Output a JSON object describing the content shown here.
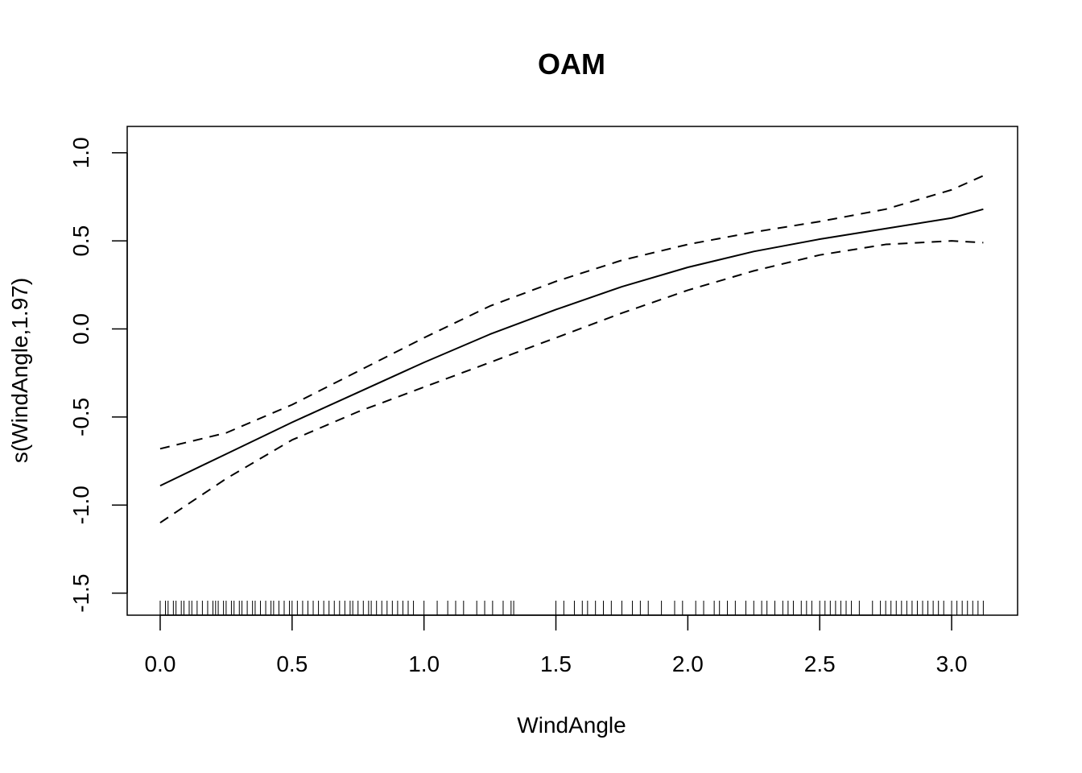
{
  "chart_data": {
    "type": "line",
    "title": "OAM",
    "xlabel": "WindAngle",
    "ylabel": "s(WindAngle,1.97)",
    "xlim": [
      -0.125,
      3.25
    ],
    "ylim": [
      -1.625,
      1.15
    ],
    "xticks": [
      0.0,
      0.5,
      1.0,
      1.5,
      2.0,
      2.5,
      3.0
    ],
    "xtick_labels": [
      "0.0",
      "0.5",
      "1.0",
      "1.5",
      "2.0",
      "2.5",
      "3.0"
    ],
    "yticks": [
      -1.5,
      -1.0,
      -0.5,
      0.0,
      0.5,
      1.0
    ],
    "ytick_labels": [
      "-1.5",
      "-1.0",
      "-0.5",
      "0.0",
      "0.5",
      "1.0"
    ],
    "grid": false,
    "series": [
      {
        "style": "solid",
        "x": [
          0.0,
          0.25,
          0.5,
          0.75,
          1.0,
          1.25,
          1.5,
          1.75,
          2.0,
          2.25,
          2.5,
          2.75,
          3.0,
          3.12
        ],
        "y": [
          -0.89,
          -0.71,
          -0.53,
          -0.36,
          -0.19,
          -0.03,
          0.11,
          0.24,
          0.35,
          0.44,
          0.51,
          0.57,
          0.63,
          0.68
        ]
      },
      {
        "style": "dashed",
        "x": [
          0.0,
          0.25,
          0.5,
          0.75,
          1.0,
          1.25,
          1.5,
          1.75,
          2.0,
          2.25,
          2.5,
          2.75,
          3.0,
          3.12
        ],
        "y": [
          -0.68,
          -0.59,
          -0.43,
          -0.24,
          -0.05,
          0.13,
          0.27,
          0.39,
          0.48,
          0.55,
          0.61,
          0.68,
          0.79,
          0.87
        ]
      },
      {
        "style": "dashed",
        "x": [
          0.0,
          0.25,
          0.5,
          0.75,
          1.0,
          1.25,
          1.5,
          1.75,
          2.0,
          2.25,
          2.5,
          2.75,
          3.0,
          3.12
        ],
        "y": [
          -1.1,
          -0.85,
          -0.63,
          -0.47,
          -0.33,
          -0.19,
          -0.05,
          0.09,
          0.22,
          0.33,
          0.42,
          0.48,
          0.5,
          0.49
        ]
      }
    ],
    "rug": [
      0.0,
      0.02,
      0.03,
      0.05,
      0.06,
      0.08,
      0.09,
      0.11,
      0.12,
      0.14,
      0.16,
      0.18,
      0.2,
      0.21,
      0.22,
      0.24,
      0.25,
      0.27,
      0.28,
      0.3,
      0.31,
      0.33,
      0.35,
      0.36,
      0.38,
      0.4,
      0.42,
      0.43,
      0.45,
      0.47,
      0.49,
      0.5,
      0.52,
      0.54,
      0.56,
      0.58,
      0.6,
      0.62,
      0.64,
      0.66,
      0.68,
      0.7,
      0.72,
      0.73,
      0.75,
      0.77,
      0.79,
      0.8,
      0.82,
      0.84,
      0.86,
      0.88,
      0.9,
      0.92,
      0.94,
      0.96,
      1.0,
      1.05,
      1.09,
      1.12,
      1.15,
      1.2,
      1.23,
      1.26,
      1.3,
      1.33,
      1.34,
      1.5,
      1.53,
      1.57,
      1.6,
      1.62,
      1.65,
      1.68,
      1.71,
      1.75,
      1.79,
      1.82,
      1.85,
      1.9,
      1.95,
      1.98,
      2.03,
      2.06,
      2.1,
      2.12,
      2.15,
      2.18,
      2.22,
      2.25,
      2.28,
      2.3,
      2.33,
      2.36,
      2.38,
      2.4,
      2.43,
      2.45,
      2.47,
      2.5,
      2.52,
      2.54,
      2.56,
      2.58,
      2.6,
      2.62,
      2.65,
      2.7,
      2.73,
      2.75,
      2.77,
      2.79,
      2.81,
      2.83,
      2.85,
      2.87,
      2.89,
      2.91,
      2.93,
      2.95,
      2.97,
      3.0,
      3.02,
      3.04,
      3.06,
      3.08,
      3.1,
      3.12
    ]
  }
}
